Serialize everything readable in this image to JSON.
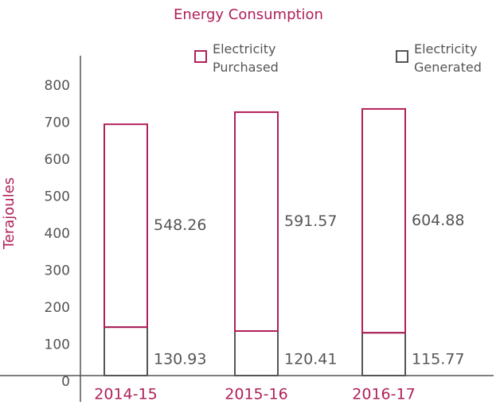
{
  "chart_data": {
    "type": "stacked_bar",
    "title": "Energy Consumption",
    "y_label": "Terajoules",
    "categories": [
      "2014-15",
      "2015-16",
      "2016-17"
    ],
    "series": [
      {
        "name": "Electricity Generated",
        "color": "#555555",
        "values": [
          130.93,
          120.41,
          115.77
        ]
      },
      {
        "name": "Electricity Purchased",
        "color": "#b0205a",
        "values": [
          548.26,
          591.57,
          604.88
        ]
      }
    ],
    "ylim": [
      0,
      800
    ],
    "yticks": [
      0,
      100,
      200,
      300,
      400,
      500,
      600,
      700,
      800
    ]
  }
}
